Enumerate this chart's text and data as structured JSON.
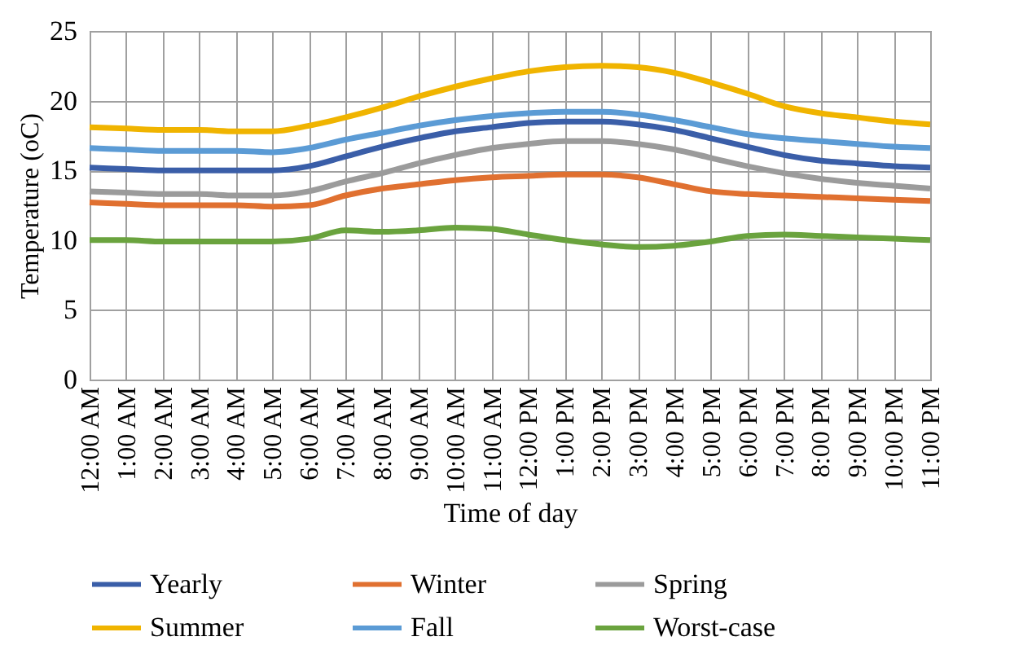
{
  "chart_data": {
    "type": "line",
    "xlabel": "Time of day",
    "ylabel": "Temperature (oC)",
    "categories": [
      "12:00 AM",
      "1:00 AM",
      "2:00 AM",
      "3:00 AM",
      "4:00 AM",
      "5:00 AM",
      "6:00 AM",
      "7:00 AM",
      "8:00 AM",
      "9:00 AM",
      "10:00 AM",
      "11:00 AM",
      "12:00 PM",
      "1:00 PM",
      "2:00 PM",
      "3:00 PM",
      "4:00 PM",
      "5:00 PM",
      "6:00 PM",
      "7:00 PM",
      "8:00 PM",
      "9:00 PM",
      "10:00 PM",
      "11:00 PM"
    ],
    "series": [
      {
        "name": "Yearly",
        "color": "#3a5ea8",
        "values": [
          15.2,
          15.1,
          15.0,
          15.0,
          15.0,
          15.0,
          15.3,
          16.0,
          16.7,
          17.3,
          17.8,
          18.1,
          18.4,
          18.5,
          18.5,
          18.3,
          17.9,
          17.3,
          16.7,
          16.1,
          15.7,
          15.5,
          15.3,
          15.2
        ]
      },
      {
        "name": "Winter",
        "color": "#e07030",
        "values": [
          12.7,
          12.6,
          12.5,
          12.5,
          12.5,
          12.4,
          12.5,
          13.2,
          13.7,
          14.0,
          14.3,
          14.5,
          14.6,
          14.7,
          14.7,
          14.5,
          14.0,
          13.5,
          13.3,
          13.2,
          13.1,
          13.0,
          12.9,
          12.8
        ]
      },
      {
        "name": "Spring",
        "color": "#9b9b9b",
        "values": [
          13.5,
          13.4,
          13.3,
          13.3,
          13.2,
          13.2,
          13.5,
          14.2,
          14.8,
          15.5,
          16.1,
          16.6,
          16.9,
          17.1,
          17.1,
          16.9,
          16.5,
          15.9,
          15.3,
          14.8,
          14.4,
          14.1,
          13.9,
          13.7
        ]
      },
      {
        "name": "Summer",
        "color": "#f0b400",
        "values": [
          18.1,
          18.0,
          17.9,
          17.9,
          17.8,
          17.8,
          18.2,
          18.8,
          19.5,
          20.3,
          21.0,
          21.6,
          22.1,
          22.4,
          22.5,
          22.4,
          22.0,
          21.3,
          20.5,
          19.6,
          19.1,
          18.8,
          18.5,
          18.3
        ]
      },
      {
        "name": "Fall",
        "color": "#5b9bd5",
        "values": [
          16.6,
          16.5,
          16.4,
          16.4,
          16.4,
          16.3,
          16.6,
          17.2,
          17.7,
          18.2,
          18.6,
          18.9,
          19.1,
          19.2,
          19.2,
          19.0,
          18.6,
          18.1,
          17.6,
          17.3,
          17.1,
          16.9,
          16.7,
          16.6
        ]
      },
      {
        "name": "Worst-case",
        "color": "#6aa33e",
        "values": [
          10.0,
          10.0,
          9.9,
          9.9,
          9.9,
          9.9,
          10.1,
          10.7,
          10.6,
          10.7,
          10.9,
          10.8,
          10.4,
          10.0,
          9.7,
          9.5,
          9.6,
          9.9,
          10.3,
          10.4,
          10.3,
          10.2,
          10.1,
          10.0
        ]
      }
    ],
    "ylim": [
      0,
      25
    ],
    "yticks": [
      0,
      5,
      10,
      15,
      20,
      25
    ],
    "grid": true,
    "legend": "bottom",
    "marker": "none",
    "line_style": "solid"
  }
}
